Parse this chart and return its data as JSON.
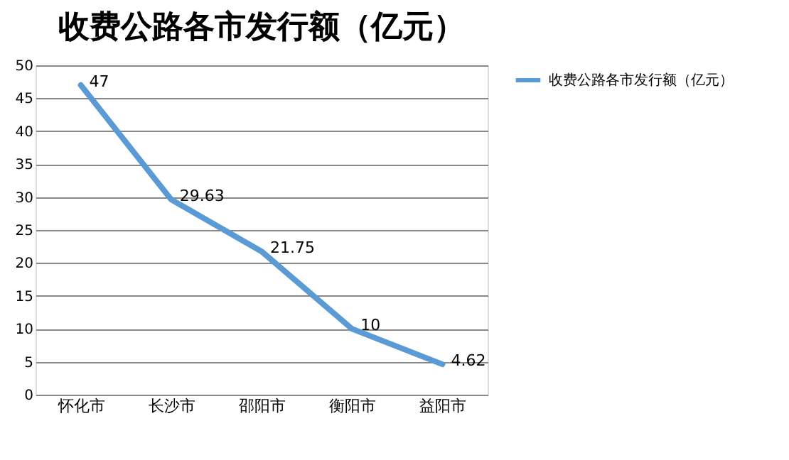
{
  "chart_data": {
    "type": "line",
    "title": "收费公路各市发行额（亿元）",
    "categories": [
      "怀化市",
      "长沙市",
      "邵阳市",
      "衡阳市",
      "益阳市"
    ],
    "series": [
      {
        "name": "收费公路各市发行额（亿元）",
        "color": "#5b9bd5",
        "values": [
          47,
          29.63,
          21.75,
          10,
          4.62
        ]
      }
    ],
    "ylim": [
      0,
      50
    ],
    "yticks": [
      0,
      5,
      10,
      15,
      20,
      25,
      30,
      35,
      40,
      45,
      50
    ],
    "grid": "y",
    "legend": "right",
    "data_labels": true,
    "marker": "none",
    "line_style": "solid"
  }
}
